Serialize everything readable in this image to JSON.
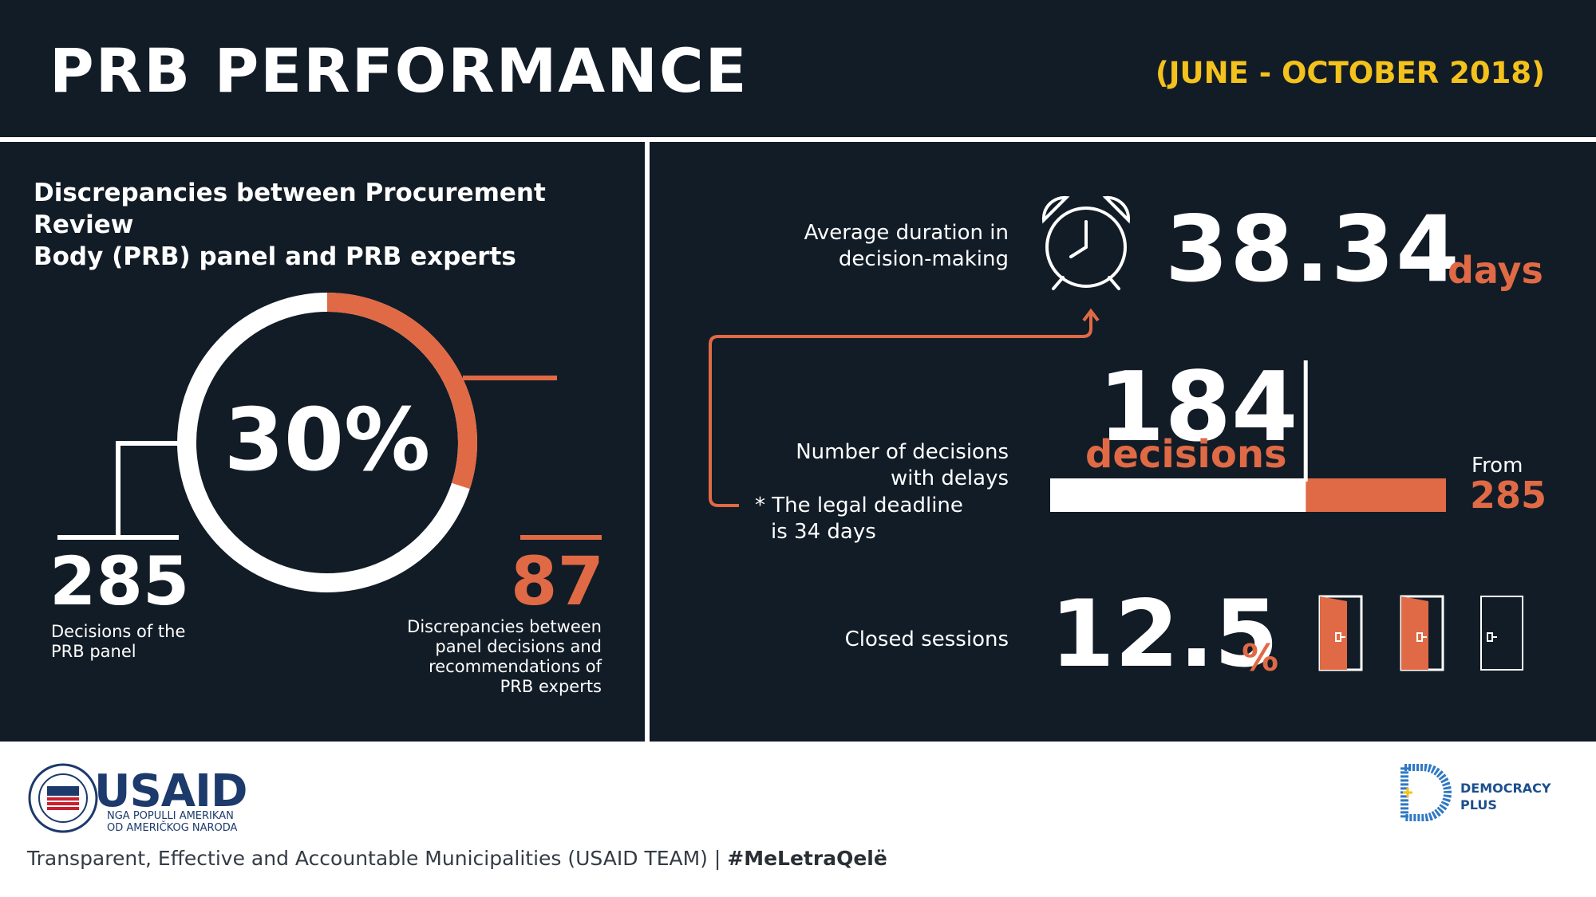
{
  "header": {
    "title": "PRB PERFORMANCE",
    "period": "(JUNE - OCTOBER 2018)"
  },
  "discrepancies": {
    "heading_line1": "Discrepancies between Procurement Review",
    "heading_line2": "Body (PRB) panel and PRB experts",
    "percent_label": "30%",
    "percent_value": 0.3,
    "panel_decisions": "285",
    "panel_caption_line1": "Decisions of the",
    "panel_caption_line2": "PRB panel",
    "discrepancy_count": "87",
    "discrepancy_caption_line1": "Discrepancies between",
    "discrepancy_caption_line2": "panel decisions and",
    "discrepancy_caption_line3": "recommendations of",
    "discrepancy_caption_line4": "PRB experts"
  },
  "duration": {
    "label_line1": "Average duration in",
    "label_line2": "decision-making",
    "value": "38.34",
    "unit": "days",
    "clock_icon": "alarm-clock-icon"
  },
  "delays": {
    "label_line1": "Number of decisions",
    "label_line2": "with delays",
    "note_line1": "* The legal deadline",
    "note_line2": "is 34 days",
    "count": "184",
    "count_unit": "decisions",
    "from_label": "From",
    "from_value": "285",
    "fraction": 0.6456
  },
  "sessions": {
    "label": "Closed sessions",
    "value": "12.5",
    "unit": "%",
    "door_icon": "door-icon"
  },
  "footer": {
    "usaid_wordmark": "USAID",
    "usaid_sub_line1": "NGA POPULLI AMERIKAN",
    "usaid_sub_line2": "OD AMERIČKOG NARODA",
    "dplus_line1": "DEMOCRACY",
    "dplus_line2": "PLUS",
    "credit": "Transparent, Effective and Accountable Municipalities (USAID TEAM) |",
    "hashtag": "#MeLetraQelë"
  },
  "colors": {
    "background": "#121c26",
    "accent": "#e06a45",
    "highlight": "#f4c21c",
    "text": "#ffffff"
  }
}
